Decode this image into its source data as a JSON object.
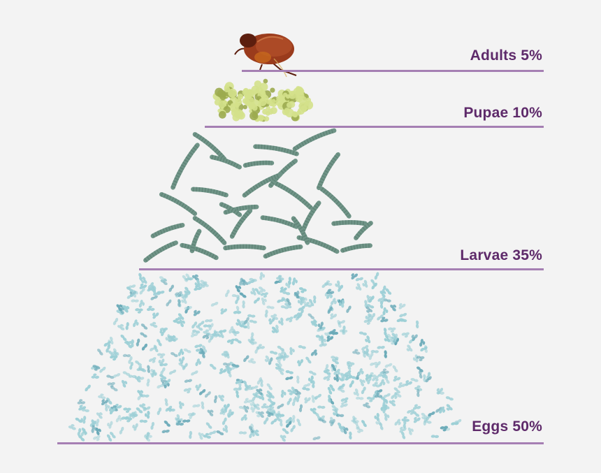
{
  "colors": {
    "background": "#f3f3f3",
    "label": "#5e2a6a",
    "rule": "#a57fb3",
    "egg": "#9ccfd6",
    "egg_dark": "#6aaab8",
    "larva": "#6f9487",
    "larva_dark": "#4d6f63",
    "pupa": "#d4e18b",
    "pupa_dark": "#9cab4f",
    "flea": "#9a3b1c",
    "flea_dark": "#5c1e0e"
  },
  "tiers": [
    {
      "id": "adults",
      "label": "Adults 5%",
      "percent": 5,
      "icon": "flea-icon"
    },
    {
      "id": "pupae",
      "label": "Pupae 10%",
      "percent": 10,
      "icon": "pupa-cluster-icon"
    },
    {
      "id": "larvae",
      "label": "Larvae 35%",
      "percent": 35,
      "icon": "larva-icon"
    },
    {
      "id": "eggs",
      "label": "Eggs 50%",
      "percent": 50,
      "icon": "egg-icon"
    }
  ]
}
